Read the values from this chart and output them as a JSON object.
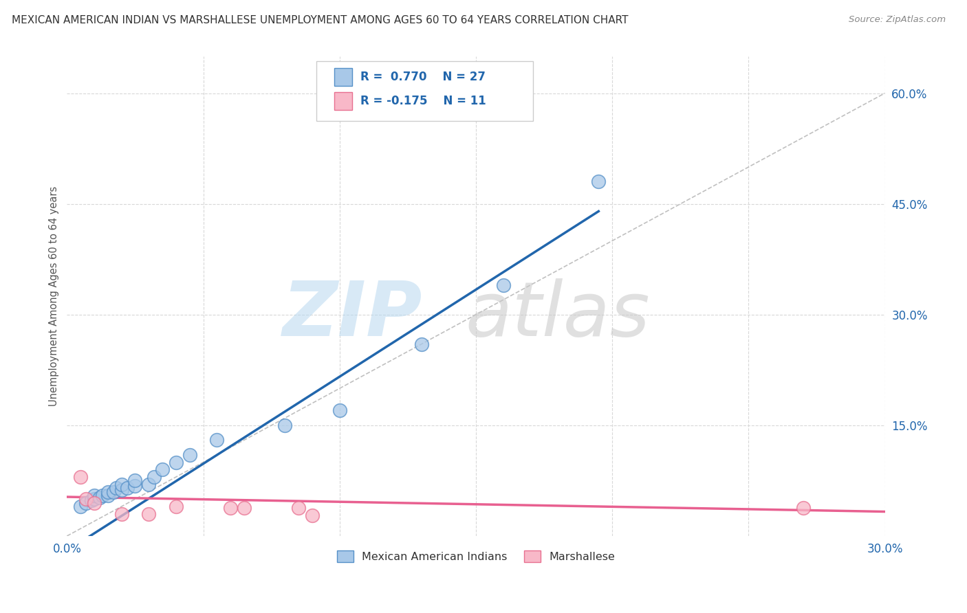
{
  "title": "MEXICAN AMERICAN INDIAN VS MARSHALLESE UNEMPLOYMENT AMONG AGES 60 TO 64 YEARS CORRELATION CHART",
  "source": "Source: ZipAtlas.com",
  "ylabel": "Unemployment Among Ages 60 to 64 years",
  "xlim": [
    0.0,
    0.3
  ],
  "ylim": [
    0.0,
    0.65
  ],
  "xticks": [
    0.0,
    0.05,
    0.1,
    0.15,
    0.2,
    0.25,
    0.3
  ],
  "yticks": [
    0.0,
    0.15,
    0.3,
    0.45,
    0.6
  ],
  "xtick_labels": [
    "0.0%",
    "",
    "",
    "",
    "",
    "",
    "30.0%"
  ],
  "ytick_labels": [
    "",
    "15.0%",
    "30.0%",
    "45.0%",
    "60.0%"
  ],
  "legend_blue_R": "R = 0.770",
  "legend_blue_N": "N = 27",
  "legend_pink_R": "R = -0.175",
  "legend_pink_N": "N =  11",
  "legend_label_blue": "Mexican American Indians",
  "legend_label_pink": "Marshallese",
  "blue_scatter_x": [
    0.005,
    0.007,
    0.009,
    0.01,
    0.01,
    0.012,
    0.013,
    0.015,
    0.015,
    0.017,
    0.018,
    0.02,
    0.02,
    0.022,
    0.025,
    0.025,
    0.03,
    0.032,
    0.035,
    0.04,
    0.045,
    0.055,
    0.08,
    0.1,
    0.13,
    0.16,
    0.195
  ],
  "blue_scatter_y": [
    0.04,
    0.045,
    0.048,
    0.05,
    0.055,
    0.052,
    0.055,
    0.055,
    0.06,
    0.06,
    0.065,
    0.062,
    0.07,
    0.065,
    0.068,
    0.075,
    0.07,
    0.08,
    0.09,
    0.1,
    0.11,
    0.13,
    0.15,
    0.17,
    0.26,
    0.34,
    0.48
  ],
  "pink_scatter_x": [
    0.005,
    0.007,
    0.01,
    0.02,
    0.03,
    0.04,
    0.06,
    0.065,
    0.085,
    0.09,
    0.27
  ],
  "pink_scatter_y": [
    0.08,
    0.05,
    0.045,
    0.03,
    0.03,
    0.04,
    0.038,
    0.038,
    0.038,
    0.028,
    0.038
  ],
  "blue_line_x": [
    0.0,
    0.195
  ],
  "blue_line_y": [
    -0.02,
    0.44
  ],
  "pink_line_x": [
    0.0,
    0.3
  ],
  "pink_line_y": [
    0.053,
    0.033
  ],
  "dashed_line_x": [
    0.0,
    0.3
  ],
  "dashed_line_y": [
    0.0,
    0.6
  ],
  "blue_color": "#a8c8e8",
  "blue_edge_color": "#5590c8",
  "blue_line_color": "#2166ac",
  "pink_color": "#f8b8c8",
  "pink_edge_color": "#e87090",
  "pink_line_color": "#e86090",
  "dashed_color": "#c0c0c0",
  "background_color": "#ffffff",
  "grid_color": "#d8d8d8",
  "title_color": "#333333",
  "source_color": "#888888",
  "tick_color": "#2166ac",
  "legend_text_color": "#2166ac"
}
